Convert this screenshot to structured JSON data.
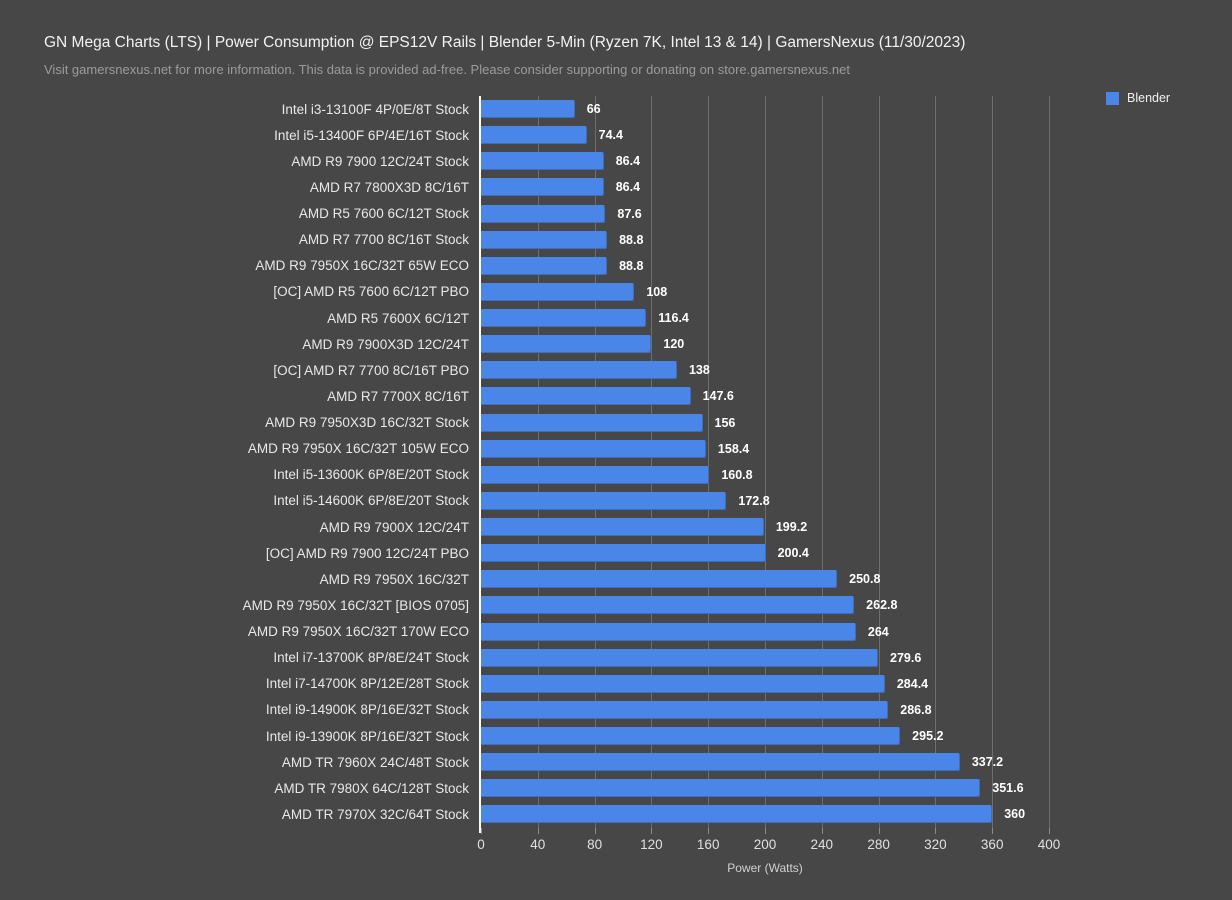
{
  "header": {
    "title": "GN Mega Charts (LTS) | Power Consumption @ EPS12V Rails | Blender 5-Min (Ryzen 7K, Intel 13 & 14) | GamersNexus (11/30/2023)",
    "subtitle": "Visit gamersnexus.net for more information. This data is provided ad-free. Please consider supporting or donating on store.gamersnexus.net"
  },
  "legend": {
    "label": "Blender",
    "position": "top-right"
  },
  "colors": {
    "background": "#474747",
    "bar": "#4a85e8",
    "gridline": "#6e6e6e",
    "axis_line": "#fafafa",
    "title_text": "#f2f2f2",
    "subtitle_text": "#9b9b9b",
    "label_text": "#e8e8e8",
    "value_text": "#ffffff",
    "tick_text": "#e0e0e0"
  },
  "chart_data": {
    "type": "bar",
    "orientation": "horizontal",
    "title": "GN Mega Charts (LTS) | Power Consumption @ EPS12V Rails | Blender 5-Min (Ryzen 7K, Intel 13 & 14) | GamersNexus (11/30/2023)",
    "xlabel": "Power (Watts)",
    "ylabel": "",
    "xlim": [
      0,
      420
    ],
    "xticks": [
      0,
      40,
      80,
      120,
      160,
      200,
      240,
      280,
      320,
      360,
      400
    ],
    "grid": true,
    "legend_position": "top-right",
    "series_name": "Blender",
    "categories": [
      "Intel i3-13100F 4P/0E/8T Stock",
      "Intel i5-13400F 6P/4E/16T Stock",
      "AMD R9 7900 12C/24T Stock",
      "AMD R7 7800X3D 8C/16T",
      "AMD R5 7600 6C/12T Stock",
      "AMD R7 7700 8C/16T Stock",
      "AMD R9 7950X 16C/32T 65W ECO",
      "[OC] AMD R5 7600 6C/12T PBO",
      "AMD R5 7600X 6C/12T",
      "AMD R9 7900X3D 12C/24T",
      "[OC] AMD R7 7700 8C/16T PBO",
      "AMD R7 7700X 8C/16T",
      "AMD R9 7950X3D 16C/32T Stock",
      "AMD R9 7950X 16C/32T 105W ECO",
      "Intel i5-13600K 6P/8E/20T Stock",
      "Intel i5-14600K 6P/8E/20T Stock",
      "AMD R9 7900X 12C/24T",
      "[OC] AMD R9 7900 12C/24T PBO",
      "AMD R9 7950X 16C/32T",
      "AMD R9 7950X 16C/32T [BIOS 0705]",
      "AMD R9 7950X 16C/32T 170W ECO",
      "Intel i7-13700K 8P/8E/24T Stock",
      "Intel i7-14700K 8P/12E/28T Stock",
      "Intel i9-14900K 8P/16E/32T Stock",
      "Intel i9-13900K 8P/16E/32T Stock",
      "AMD TR 7960X 24C/48T Stock",
      "AMD TR 7980X 64C/128T Stock",
      "AMD TR 7970X 32C/64T Stock"
    ],
    "values": [
      66,
      74.4,
      86.4,
      86.4,
      87.6,
      88.8,
      88.8,
      108,
      116.4,
      120,
      138,
      147.6,
      156,
      158.4,
      160.8,
      172.8,
      199.2,
      200.4,
      250.8,
      262.8,
      264,
      279.6,
      284.4,
      286.8,
      295.2,
      337.2,
      351.6,
      360
    ]
  }
}
